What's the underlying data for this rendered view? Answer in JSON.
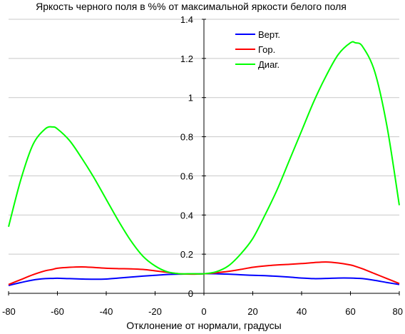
{
  "chart_data": {
    "type": "line",
    "title": "Яркость черного поля в %% от максимальной яркости белого поля",
    "xlabel": "Отклонение от нормали, градусы",
    "ylabel": "",
    "xlim": [
      -80,
      80
    ],
    "ylim": [
      0,
      1.4
    ],
    "xticks": [
      "-80",
      "-60",
      "-40",
      "-20",
      "0",
      "20",
      "40",
      "60",
      "80"
    ],
    "yticks": [
      "0",
      "0.2",
      "0.4",
      "0.6",
      "0.8",
      "1",
      "1.2",
      "1.4"
    ],
    "grid": "horizontal",
    "legend_position": "top-right",
    "x": [
      -80,
      -75,
      -70,
      -65,
      -62,
      -60,
      -55,
      -50,
      -45,
      -40,
      -35,
      -30,
      -25,
      -20,
      -15,
      -10,
      -5,
      0,
      5,
      10,
      15,
      20,
      25,
      30,
      35,
      40,
      45,
      50,
      55,
      60,
      62,
      65,
      70,
      75,
      80
    ],
    "series": [
      {
        "name": "Верт.",
        "color": "#0000ff",
        "values": [
          0.04,
          0.055,
          0.068,
          0.075,
          0.076,
          0.077,
          0.075,
          0.073,
          0.072,
          0.073,
          0.078,
          0.083,
          0.088,
          0.092,
          0.096,
          0.098,
          0.099,
          0.1,
          0.1,
          0.098,
          0.095,
          0.092,
          0.09,
          0.087,
          0.083,
          0.078,
          0.075,
          0.076,
          0.078,
          0.078,
          0.077,
          0.075,
          0.066,
          0.055,
          0.045
        ]
      },
      {
        "name": "Гор.",
        "color": "#ff0000",
        "values": [
          0.045,
          0.07,
          0.095,
          0.115,
          0.122,
          0.128,
          0.133,
          0.135,
          0.132,
          0.128,
          0.126,
          0.125,
          0.122,
          0.115,
          0.107,
          0.1,
          0.098,
          0.1,
          0.105,
          0.112,
          0.122,
          0.133,
          0.14,
          0.145,
          0.148,
          0.152,
          0.157,
          0.16,
          0.155,
          0.145,
          0.138,
          0.125,
          0.1,
          0.075,
          0.05
        ]
      },
      {
        "name": "Диаг.",
        "color": "#00ff00",
        "values": [
          0.34,
          0.58,
          0.76,
          0.84,
          0.85,
          0.84,
          0.78,
          0.69,
          0.59,
          0.48,
          0.37,
          0.27,
          0.19,
          0.14,
          0.11,
          0.1,
          0.1,
          0.1,
          0.11,
          0.14,
          0.2,
          0.28,
          0.4,
          0.53,
          0.68,
          0.83,
          0.98,
          1.11,
          1.22,
          1.28,
          1.28,
          1.26,
          1.13,
          0.85,
          0.45
        ]
      }
    ]
  }
}
